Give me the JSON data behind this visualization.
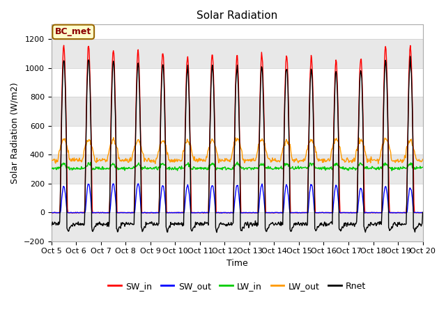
{
  "title": "Solar Radiation",
  "ylabel": "Solar Radiation (W/m2)",
  "xlabel": "Time",
  "ylim": [
    -200,
    1300
  ],
  "xlim": [
    0,
    15
  ],
  "xtick_labels": [
    "Oct 5",
    "Oct 6",
    "Oct 7",
    "Oct 8",
    "Oct 9",
    "Oct 10",
    "Oct 11",
    "Oct 12",
    "Oct 13",
    "Oct 14",
    "Oct 15",
    "Oct 16",
    "Oct 17",
    "Oct 18",
    "Oct 19",
    "Oct 20"
  ],
  "annotation_text": "BC_met",
  "annotation_bg": "#FFFFCC",
  "annotation_border": "#996600",
  "colors": {
    "SW_in": "#FF0000",
    "SW_out": "#0000FF",
    "LW_in": "#00CC00",
    "LW_out": "#FF9900",
    "Rnet": "#000000"
  },
  "background_color": "#FFFFFF",
  "title_fontsize": 11,
  "axis_fontsize": 9,
  "tick_fontsize": 8,
  "legend_fontsize": 9,
  "peak_SW_in": [
    1150,
    1160,
    1130,
    1120,
    1110,
    1080,
    1100,
    1090,
    1095,
    1090,
    1080,
    1050,
    1070,
    1150,
    1160
  ],
  "peak_SW_out": [
    180,
    200,
    200,
    200,
    190,
    185,
    190,
    185,
    190,
    190,
    195,
    185,
    170,
    180,
    170
  ]
}
